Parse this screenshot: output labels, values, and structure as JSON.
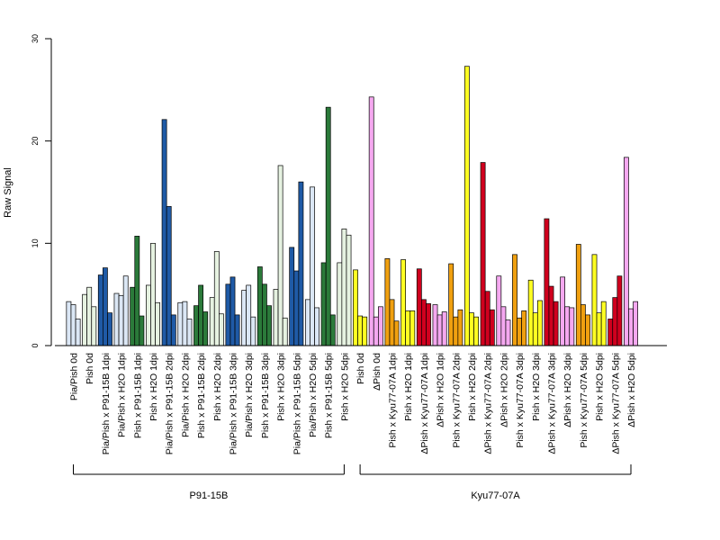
{
  "chart_data": {
    "type": "bar",
    "ylabel": "Raw Signal",
    "ylim": [
      0,
      30
    ],
    "yticks": [
      0,
      10,
      20,
      30
    ],
    "grid": false,
    "legend": "none",
    "categories": [
      "Pia/Pish 0d",
      "Pish 0d",
      "Pia/Pish x P91-15B 1dpi",
      "Pia/Pish x H2O 1dpi",
      "Pish x P91-15B 1dpi",
      "Pish x H2O 1dpi",
      "Pia/Pish x P91-15B 2dpi",
      "Pia/Pish x H2O 2dpi",
      "Pish x P91-15B 2dpi",
      "Pish x H2O 2dpi",
      "Pia/Pish x P91-15B 3dpi",
      "Pia/Pish x H2O 3dpi",
      "Pish x P91-15B 3dpi",
      "Pish x H2O 3dpi",
      "Pia/Pish x P91-15B 5dpi",
      "Pia/Pish x H2O 5dpi",
      "Pish x P91-15B 5dpi",
      "Pish x H2O 5dpi",
      "Pish 0d",
      "ΔPish 0d",
      "Pish x Kyu77-07A 1dpi",
      "Pish x H2O 1dpi",
      "ΔPish x Kyu77-07A 1dpi",
      "ΔPish x H2O 1dpi",
      "Pish x Kyu77-07A 2dpi",
      "Pish x H2O 2dpi",
      "ΔPish x Kyu77-07A 2dpi",
      "ΔPish x H2O 2dpi",
      "Pish x Kyu77-07A 3dpi",
      "Pish x H2O 3dpi",
      "ΔPish x Kyu77-07A 3dpi",
      "ΔPish x H2O 3dpi",
      "Pish x Kyu77-07A 5dpi",
      "Pish x H2O 5dpi",
      "ΔPish x Kyu77-07A 5dpi",
      "ΔPish x H2O 5dpi"
    ],
    "colors": [
      "#dbe7f5",
      "#e6f2e1",
      "#1f5aa6",
      "#dbe7f5",
      "#2b7a3a",
      "#e6f2e1",
      "#1f5aa6",
      "#dbe7f5",
      "#2b7a3a",
      "#e6f2e1",
      "#1f5aa6",
      "#dbe7f5",
      "#2b7a3a",
      "#e6f2e1",
      "#1f5aa6",
      "#dbe7f5",
      "#2b7a3a",
      "#e6f2e1",
      "#ffff22",
      "#f5a8f0",
      "#f0a010",
      "#ffff22",
      "#d0001e",
      "#f5a8f0",
      "#f0a010",
      "#ffff22",
      "#d0001e",
      "#f5a8f0",
      "#f0a010",
      "#ffff22",
      "#d0001e",
      "#f5a8f0",
      "#f0a010",
      "#ffff22",
      "#d0001e",
      "#f5a8f0"
    ],
    "values": [
      [
        4.3,
        4.0,
        2.6
      ],
      [
        5.0,
        5.7,
        3.8
      ],
      [
        6.9,
        7.6,
        3.2
      ],
      [
        5.1,
        4.9,
        6.8
      ],
      [
        5.7,
        10.7,
        2.9
      ],
      [
        5.9,
        10.0,
        4.2
      ],
      [
        22.1,
        13.6,
        3.0
      ],
      [
        4.2,
        4.3,
        2.6
      ],
      [
        3.9,
        5.9,
        3.3
      ],
      [
        4.7,
        9.2,
        3.1
      ],
      [
        6.0,
        6.7,
        3.0
      ],
      [
        5.4,
        5.9,
        2.8
      ],
      [
        7.7,
        6.0,
        3.9
      ],
      [
        5.5,
        17.6,
        2.7
      ],
      [
        9.6,
        7.3,
        16.0
      ],
      [
        4.5,
        15.5,
        3.7
      ],
      [
        8.1,
        23.3,
        3.0
      ],
      [
        8.1,
        11.4,
        10.8
      ],
      [
        7.4,
        2.9,
        2.8
      ],
      [
        24.3,
        2.8,
        3.8
      ],
      [
        8.5,
        4.5,
        2.4
      ],
      [
        8.4,
        3.4,
        3.4
      ],
      [
        7.5,
        4.5,
        4.1
      ],
      [
        4.0,
        3.0,
        3.3
      ],
      [
        8.0,
        2.8,
        3.5
      ],
      [
        27.3,
        3.2,
        2.8
      ],
      [
        17.9,
        5.3,
        3.5
      ],
      [
        6.8,
        3.8,
        2.5
      ],
      [
        8.9,
        2.7,
        3.4
      ],
      [
        6.4,
        3.2,
        4.4
      ],
      [
        12.4,
        5.8,
        4.3
      ],
      [
        6.7,
        3.8,
        3.7
      ],
      [
        9.9,
        4.0,
        3.0
      ],
      [
        8.9,
        3.2,
        4.3
      ],
      [
        2.6,
        4.7,
        6.8
      ],
      [
        18.4,
        3.6,
        4.3
      ]
    ],
    "groups": [
      {
        "label": "P91-15B",
        "start": 0,
        "end": 17
      },
      {
        "label": "Kyu77-07A",
        "start": 18,
        "end": 35
      }
    ]
  }
}
